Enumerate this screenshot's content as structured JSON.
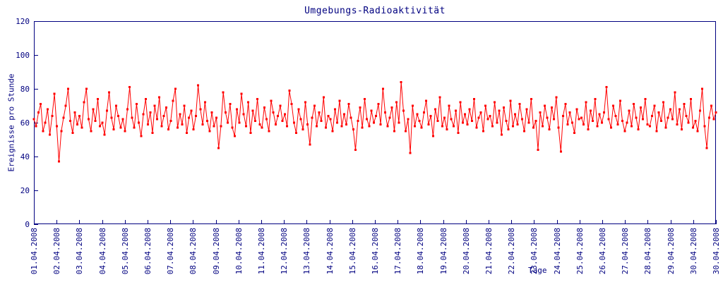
{
  "colors": {
    "axis": "#000080",
    "series": "#ff0000",
    "background": "#ffffff"
  },
  "chart_data": {
    "type": "line",
    "title": "Umgebungs-Radioaktivität",
    "xlabel": "Tage",
    "ylabel": "Ereignisse pro Stunde",
    "ylim": [
      0,
      120
    ],
    "yticks": [
      0,
      20,
      40,
      60,
      80,
      100,
      120
    ],
    "grid": false,
    "legend": null,
    "marker": "square",
    "xtick_labels": [
      "01.04.2008",
      "02.04.2008",
      "03.04.2008",
      "04.04.2008",
      "05.04.2008",
      "06.04.2008",
      "07.04.2008",
      "08.04.2008",
      "09.04.2008",
      "10.04.2008",
      "11.04.2008",
      "12.04.2008",
      "13.04.2008",
      "14.04.2008",
      "15.04.2008",
      "16.04.2008",
      "17.04.2008",
      "18.04.2008",
      "19.04.2008",
      "20.04.2008",
      "21.04.2008",
      "22.04.2008",
      "23.04.2008",
      "24.04.2008",
      "25.04.2008",
      "26.04.2008",
      "27.04.2008",
      "28.04.2008",
      "29.04.2008",
      "30.04.2008",
      "30.04.2008"
    ],
    "points_per_day": 10,
    "values": [
      62,
      58,
      66,
      71,
      55,
      60,
      68,
      53,
      64,
      77,
      58,
      37,
      55,
      63,
      70,
      80,
      61,
      54,
      66,
      59,
      64,
      57,
      72,
      80,
      62,
      55,
      68,
      61,
      74,
      58,
      60,
      53,
      67,
      78,
      63,
      56,
      70,
      64,
      57,
      62,
      55,
      68,
      81,
      63,
      57,
      71,
      60,
      52,
      65,
      74,
      59,
      66,
      54,
      70,
      62,
      75,
      58,
      64,
      69,
      56,
      61,
      73,
      80,
      57,
      65,
      59,
      70,
      54,
      63,
      67,
      56,
      64,
      82,
      68,
      59,
      72,
      61,
      55,
      66,
      58,
      63,
      45,
      58,
      78,
      66,
      60,
      71,
      57,
      52,
      68,
      60,
      77,
      65,
      58,
      72,
      54,
      67,
      61,
      74,
      59,
      57,
      69,
      62,
      55,
      73,
      66,
      59,
      64,
      70,
      61,
      65,
      58,
      79,
      71,
      60,
      54,
      68,
      62,
      56,
      72,
      59,
      47,
      63,
      70,
      58,
      66,
      61,
      75,
      57,
      64,
      62,
      55,
      68,
      60,
      73,
      58,
      65,
      59,
      71,
      63,
      56,
      44,
      61,
      69,
      57,
      74,
      62,
      58,
      67,
      60,
      64,
      71,
      59,
      80,
      66,
      58,
      63,
      69,
      55,
      72,
      60,
      84,
      67,
      55,
      62,
      42,
      70,
      58,
      65,
      61,
      57,
      66,
      73,
      59,
      64,
      52,
      68,
      61,
      75,
      58,
      63,
      56,
      70,
      62,
      58,
      67,
      54,
      72,
      60,
      65,
      59,
      68,
      61,
      74,
      57,
      63,
      66,
      55,
      70,
      62,
      64,
      58,
      72,
      60,
      67,
      53,
      69,
      61,
      56,
      73,
      58,
      65,
      59,
      71,
      62,
      55,
      68,
      60,
      74,
      57,
      61,
      44,
      66,
      58,
      70,
      63,
      56,
      69,
      62,
      75,
      57,
      43,
      64,
      71,
      59,
      66,
      60,
      54,
      68,
      62,
      63,
      59,
      72,
      56,
      67,
      61,
      74,
      58,
      65,
      60,
      66,
      81,
      62,
      57,
      70,
      64,
      59,
      73,
      61,
      55,
      60,
      67,
      58,
      71,
      63,
      56,
      69,
      62,
      74,
      59,
      58,
      64,
      70,
      55,
      66,
      61,
      72,
      57,
      63,
      68,
      62,
      78,
      59,
      68,
      56,
      71,
      64,
      60,
      74,
      57,
      61,
      55,
      67,
      80,
      58,
      45,
      63,
      70,
      62,
      66
    ]
  }
}
